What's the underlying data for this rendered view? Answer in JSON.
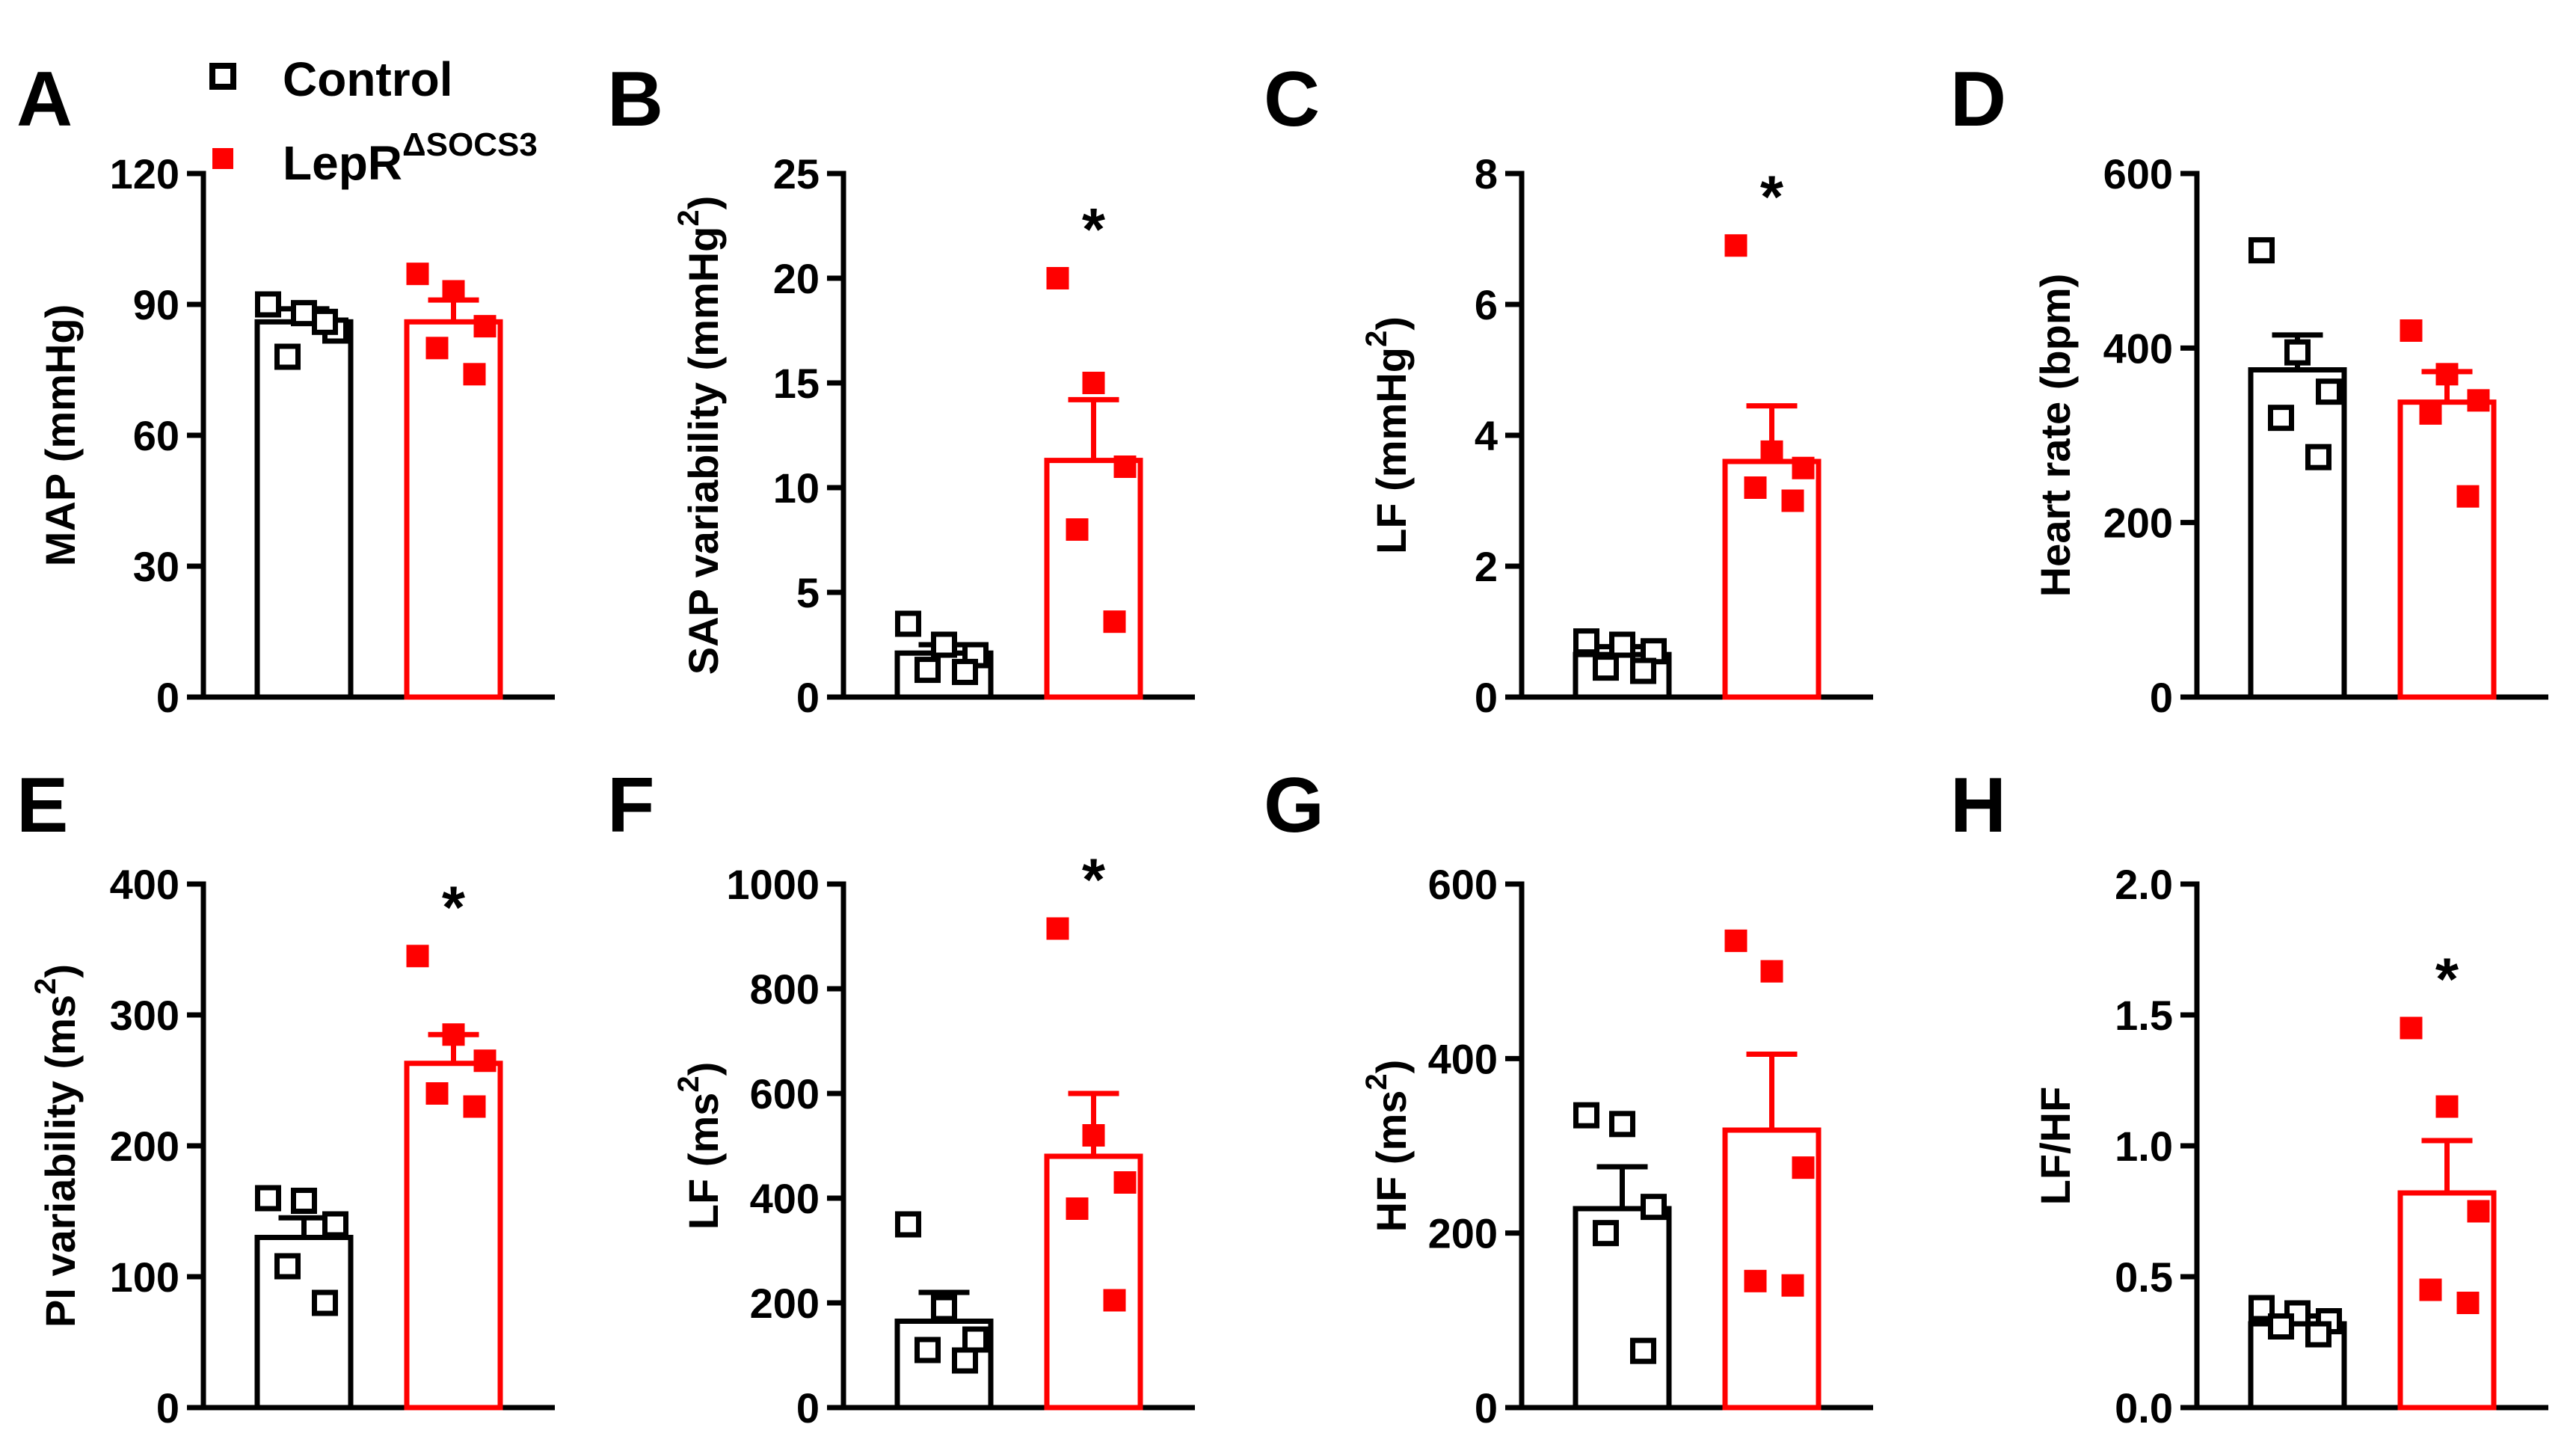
{
  "legend": {
    "entries": [
      {
        "label": "Control",
        "marker": "open-square",
        "color": "#000000"
      },
      {
        "label": "LepR",
        "superscript": "ΔSOCS3",
        "marker": "filled-square",
        "color": "#ff0000"
      }
    ]
  },
  "colors": {
    "control": "#000000",
    "treatment": "#ff0000"
  },
  "chart_data": [
    {
      "type": "bar",
      "panel": "A",
      "ylabel": "MAP (mmHg)",
      "ylim": [
        0,
        120
      ],
      "yticks": [
        0,
        30,
        60,
        90,
        120
      ],
      "series": [
        {
          "name": "Control",
          "mean": 86,
          "sem": 3,
          "points": [
            90,
            88,
            84,
            78,
            86
          ]
        },
        {
          "name": "LepRΔSOCS3",
          "mean": 86,
          "sem": 5,
          "points": [
            97,
            93,
            85,
            80,
            74
          ]
        }
      ],
      "significance": ""
    },
    {
      "type": "bar",
      "panel": "B",
      "ylabel": "SAP variability (mmHg",
      "ylabel_sup": "2",
      "ylabel_end": ")",
      "ylim": [
        0,
        25
      ],
      "yticks": [
        0,
        5,
        10,
        15,
        20,
        25
      ],
      "series": [
        {
          "name": "Control",
          "mean": 2.1,
          "sem": 0.4,
          "points": [
            3.5,
            2.5,
            2.0,
            1.3,
            1.2
          ]
        },
        {
          "name": "LepRΔSOCS3",
          "mean": 11.3,
          "sem": 2.9,
          "points": [
            20,
            15,
            11,
            8,
            3.6
          ]
        }
      ],
      "significance": "*"
    },
    {
      "type": "bar",
      "panel": "C",
      "ylabel": "LF (mmHg",
      "ylabel_sup": "2",
      "ylabel_end": ")",
      "ylim": [
        0,
        8
      ],
      "yticks": [
        0,
        2,
        4,
        6,
        8
      ],
      "series": [
        {
          "name": "Control",
          "mean": 0.65,
          "sem": 0.12,
          "points": [
            0.85,
            0.8,
            0.7,
            0.45,
            0.4
          ]
        },
        {
          "name": "LepRΔSOCS3",
          "mean": 3.6,
          "sem": 0.85,
          "points": [
            6.9,
            3.75,
            3.5,
            3.2,
            3.0
          ]
        }
      ],
      "significance": "*"
    },
    {
      "type": "bar",
      "panel": "D",
      "ylabel": "Heart rate (bpm)",
      "ylim": [
        0,
        600
      ],
      "yticks": [
        0,
        200,
        400,
        600
      ],
      "series": [
        {
          "name": "Control",
          "mean": 375,
          "sem": 40,
          "points": [
            512,
            395,
            350,
            320,
            275
          ]
        },
        {
          "name": "LepRΔSOCS3",
          "mean": 338,
          "sem": 35,
          "points": [
            420,
            370,
            340,
            325,
            230
          ]
        }
      ],
      "significance": ""
    },
    {
      "type": "bar",
      "panel": "E",
      "ylabel": "PI variability (ms",
      "ylabel_sup": "2",
      "ylabel_end": ")",
      "ylim": [
        0,
        400
      ],
      "yticks": [
        0,
        100,
        200,
        300,
        400
      ],
      "series": [
        {
          "name": "Control",
          "mean": 130,
          "sem": 15,
          "points": [
            160,
            158,
            140,
            108,
            80
          ]
        },
        {
          "name": "LepRΔSOCS3",
          "mean": 263,
          "sem": 22,
          "points": [
            345,
            285,
            265,
            240,
            230
          ]
        }
      ],
      "significance": "*"
    },
    {
      "type": "bar",
      "panel": "F",
      "ylabel": "LF (ms",
      "ylabel_sup": "2",
      "ylabel_end": ")",
      "ylim": [
        0,
        1000
      ],
      "yticks": [
        0,
        200,
        400,
        600,
        800,
        1000
      ],
      "series": [
        {
          "name": "Control",
          "mean": 165,
          "sem": 55,
          "points": [
            350,
            190,
            130,
            110,
            90
          ]
        },
        {
          "name": "LepRΔSOCS3",
          "mean": 480,
          "sem": 120,
          "points": [
            915,
            520,
            430,
            380,
            205
          ]
        }
      ],
      "significance": "*"
    },
    {
      "type": "bar",
      "panel": "G",
      "ylabel": "HF (ms",
      "ylabel_sup": "2",
      "ylabel_end": ")",
      "ylim": [
        0,
        600
      ],
      "yticks": [
        0,
        200,
        400,
        600
      ],
      "series": [
        {
          "name": "Control",
          "mean": 228,
          "sem": 48,
          "points": [
            335,
            325,
            230,
            200,
            65
          ]
        },
        {
          "name": "LepRΔSOCS3",
          "mean": 318,
          "sem": 87,
          "points": [
            535,
            500,
            275,
            145,
            140
          ]
        }
      ],
      "significance": ""
    },
    {
      "type": "bar",
      "panel": "H",
      "ylabel": "LF/HF",
      "ylim": [
        0,
        2.0
      ],
      "yticks": [
        "0.0",
        "0.5",
        "1.0",
        "1.5",
        "2.0"
      ],
      "series": [
        {
          "name": "Control",
          "mean": 0.32,
          "sem": 0.03,
          "points": [
            0.38,
            0.36,
            0.33,
            0.31,
            0.28
          ]
        },
        {
          "name": "LepRΔSOCS3",
          "mean": 0.82,
          "sem": 0.2,
          "points": [
            1.45,
            1.15,
            0.75,
            0.45,
            0.4
          ]
        }
      ],
      "significance": "*"
    }
  ]
}
